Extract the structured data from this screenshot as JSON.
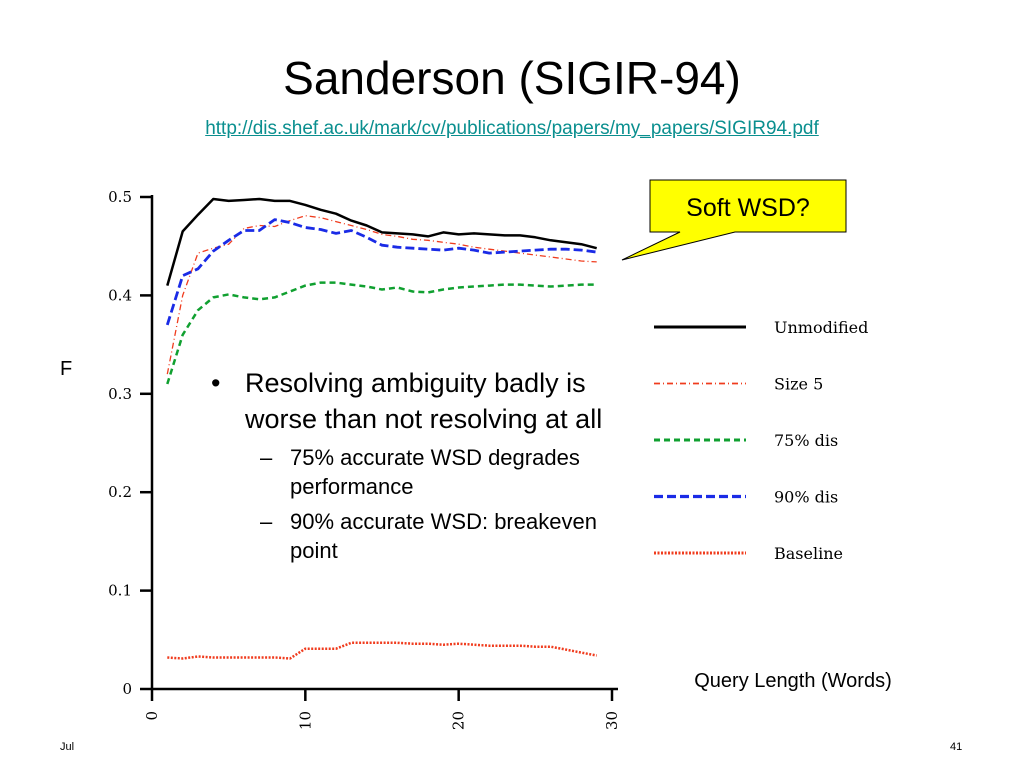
{
  "slide": {
    "title": "Sanderson (SIGIR-94)",
    "url": "http://dis.shef.ac.uk/mark/cv/publications/papers/my_papers/SIGIR94.pdf",
    "callout": "Soft WSD?",
    "bullet": "Resolving ambiguity badly is worse than not resolving at all",
    "subbullets": [
      "75% accurate WSD degrades performance",
      "90% accurate WSD: breakeven point"
    ],
    "footer_left": "Jul",
    "footer_right": "41",
    "bullet_glyph": "•",
    "dash_glyph": "–"
  },
  "colors": {
    "accent_link": "#0a8f8f",
    "callout_fill": "#ffff00"
  },
  "chart_data": {
    "type": "line",
    "ylabel": "F",
    "xlabel": "Query Length (Words)",
    "xlim": [
      0,
      30
    ],
    "ylim": [
      0,
      0.5
    ],
    "x_ticks": [
      "0",
      "10",
      "20",
      "30"
    ],
    "y_ticks": [
      "0",
      "0.1",
      "0.2",
      "0.3",
      "0.4",
      "0.5"
    ],
    "x": [
      1,
      2,
      3,
      4,
      5,
      6,
      7,
      8,
      9,
      10,
      11,
      12,
      13,
      14,
      15,
      16,
      17,
      18,
      19,
      20,
      21,
      22,
      23,
      24,
      25,
      26,
      27,
      28,
      29
    ],
    "series": [
      {
        "name": "Unmodified",
        "color": "#000000",
        "dash": "",
        "width": 2.5,
        "values": [
          0.41,
          0.465,
          0.482,
          0.498,
          0.496,
          0.497,
          0.498,
          0.496,
          0.496,
          0.492,
          0.487,
          0.483,
          0.476,
          0.471,
          0.464,
          0.463,
          0.462,
          0.46,
          0.464,
          0.462,
          0.463,
          0.462,
          0.461,
          0.461,
          0.459,
          0.456,
          0.454,
          0.452,
          0.448
        ]
      },
      {
        "name": "Size 5",
        "color": "#f03c1e",
        "dash": "6 3 1 3",
        "width": 1.3,
        "values": [
          0.32,
          0.4,
          0.443,
          0.448,
          0.452,
          0.468,
          0.471,
          0.47,
          0.476,
          0.481,
          0.479,
          0.475,
          0.471,
          0.467,
          0.462,
          0.46,
          0.457,
          0.456,
          0.454,
          0.452,
          0.449,
          0.447,
          0.445,
          0.443,
          0.441,
          0.439,
          0.437,
          0.435,
          0.434
        ]
      },
      {
        "name": "75% dis",
        "color": "#10a030",
        "dash": "6 4",
        "width": 2.5,
        "values": [
          0.31,
          0.36,
          0.385,
          0.398,
          0.401,
          0.398,
          0.396,
          0.398,
          0.404,
          0.41,
          0.413,
          0.413,
          0.411,
          0.409,
          0.406,
          0.408,
          0.404,
          0.403,
          0.406,
          0.408,
          0.409,
          0.41,
          0.411,
          0.411,
          0.41,
          0.409,
          0.41,
          0.411,
          0.411
        ]
      },
      {
        "name": "90% dis",
        "color": "#1a2be6",
        "dash": "9 4",
        "width": 2.8,
        "values": [
          0.37,
          0.42,
          0.427,
          0.445,
          0.456,
          0.466,
          0.466,
          0.477,
          0.474,
          0.469,
          0.467,
          0.463,
          0.466,
          0.459,
          0.451,
          0.449,
          0.448,
          0.447,
          0.446,
          0.448,
          0.446,
          0.443,
          0.444,
          0.445,
          0.446,
          0.447,
          0.447,
          0.446,
          0.444
        ]
      },
      {
        "name": "Baseline",
        "color": "#f03c1e",
        "dash": "2 1.5",
        "width": 2.5,
        "values": [
          0.032,
          0.031,
          0.033,
          0.032,
          0.032,
          0.032,
          0.032,
          0.032,
          0.031,
          0.041,
          0.041,
          0.041,
          0.047,
          0.047,
          0.047,
          0.047,
          0.046,
          0.046,
          0.045,
          0.046,
          0.045,
          0.044,
          0.044,
          0.044,
          0.043,
          0.043,
          0.04,
          0.037,
          0.034
        ]
      }
    ]
  }
}
